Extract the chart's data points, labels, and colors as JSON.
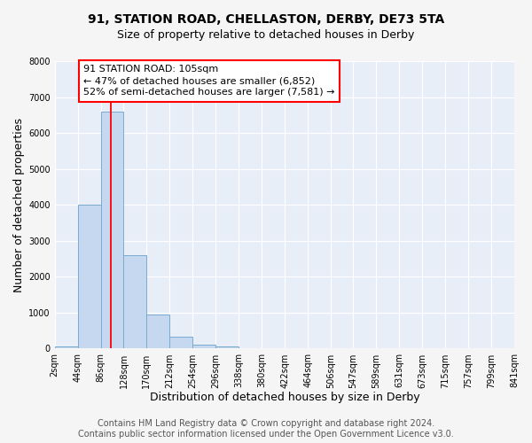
{
  "title": "91, STATION ROAD, CHELLASTON, DERBY, DE73 5TA",
  "subtitle": "Size of property relative to detached houses in Derby",
  "xlabel": "Distribution of detached houses by size in Derby",
  "ylabel": "Number of detached properties",
  "bar_color": "#c5d8f0",
  "bar_edge_color": "#7aaad0",
  "background_color": "#e8eef8",
  "grid_color": "#ffffff",
  "fig_background": "#f5f5f5",
  "bin_edges": [
    2,
    44,
    86,
    128,
    170,
    212,
    254,
    296,
    338,
    380,
    422,
    464,
    506,
    547,
    589,
    631,
    673,
    715,
    757,
    799,
    841
  ],
  "bar_heights": [
    50,
    4000,
    6600,
    2600,
    950,
    325,
    120,
    60,
    0,
    0,
    0,
    0,
    0,
    0,
    0,
    0,
    0,
    0,
    0,
    0
  ],
  "tick_labels": [
    "2sqm",
    "44sqm",
    "86sqm",
    "128sqm",
    "170sqm",
    "212sqm",
    "254sqm",
    "296sqm",
    "338sqm",
    "380sqm",
    "422sqm",
    "464sqm",
    "506sqm",
    "547sqm",
    "589sqm",
    "631sqm",
    "673sqm",
    "715sqm",
    "757sqm",
    "799sqm",
    "841sqm"
  ],
  "ylim": [
    0,
    8000
  ],
  "yticks": [
    0,
    1000,
    2000,
    3000,
    4000,
    5000,
    6000,
    7000,
    8000
  ],
  "red_line_x": 105,
  "annotation_title": "91 STATION ROAD: 105sqm",
  "annotation_line1": "← 47% of detached houses are smaller (6,852)",
  "annotation_line2": "52% of semi-detached houses are larger (7,581) →",
  "footer_line1": "Contains HM Land Registry data © Crown copyright and database right 2024.",
  "footer_line2": "Contains public sector information licensed under the Open Government Licence v3.0.",
  "title_fontsize": 10,
  "subtitle_fontsize": 9,
  "axis_label_fontsize": 9,
  "tick_fontsize": 7,
  "annotation_fontsize": 8,
  "footer_fontsize": 7
}
